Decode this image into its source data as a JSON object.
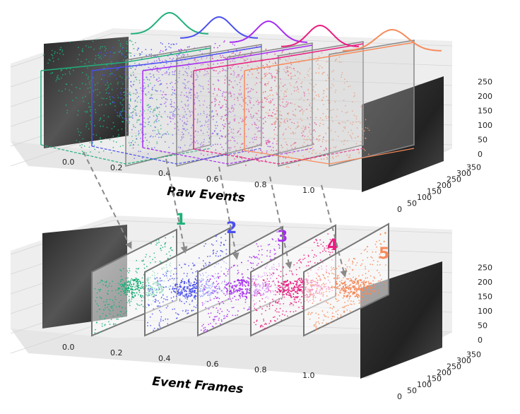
{
  "panels": [
    {
      "id": "raw",
      "label": "Raw Events"
    },
    {
      "id": "frames",
      "label": "Event Frames"
    }
  ],
  "frame_numbers": [
    "1",
    "2",
    "3",
    "4",
    "5"
  ],
  "colors": {
    "bin1": "#1fb07a",
    "bin2": "#4a4ff0",
    "bin3": "#a62cf0",
    "bin4": "#ea1d80",
    "bin5": "#f88a5a",
    "frame_border": "#777777",
    "arrow": "#8a8a8a",
    "pane": "#eeeeee"
  },
  "axes": {
    "x_ticks": [
      "0.0",
      "0.2",
      "0.4",
      "0.6",
      "0.8",
      "1.0"
    ],
    "y_ticks": [
      "0",
      "50",
      "100",
      "150",
      "200",
      "250",
      "300",
      "350"
    ],
    "z_ticks": [
      "0",
      "50",
      "100",
      "150",
      "200",
      "250"
    ]
  },
  "icons": {
    "gaussian": "gaussian-curve-icon",
    "grayscale_image": "grayscale-frame-image"
  }
}
